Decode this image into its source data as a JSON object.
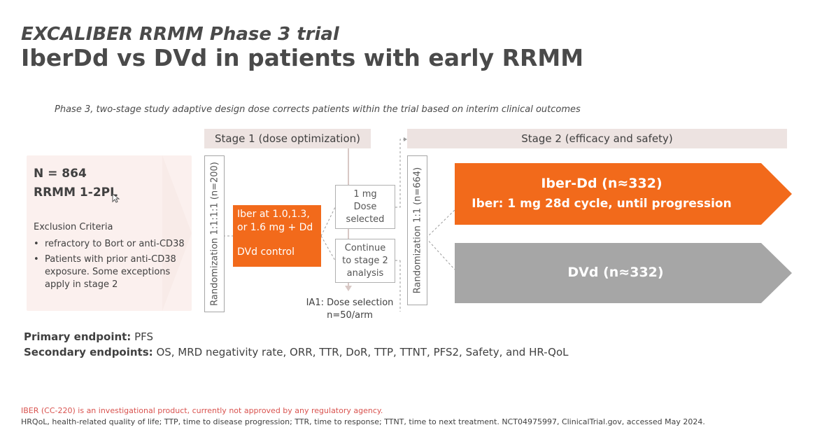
{
  "header": {
    "kicker": "EXCALIBER RRMM Phase 3 trial",
    "title": "IberDd vs DVd in patients with early RRMM"
  },
  "subtitle": "Phase 3, two-stage study adaptive design dose corrects patients within the trial based on interim clinical outcomes",
  "patients": {
    "n_label": "N = 864",
    "population": "RRMM 1-2PL",
    "exclusion_title": "Exclusion Criteria",
    "exclusion_items": [
      "refractory to Bort or anti-CD38",
      "Patients with prior anti-CD38 exposure. Some exceptions apply in stage 2"
    ]
  },
  "stage1": {
    "header": "Stage 1 (dose optimization)",
    "randomization": "Randomization 1:1:1:1 (n=200)",
    "arm_line1": "Iber at 1.0,1.3,",
    "arm_line2": "or 1.6 mg + Dd",
    "control": "DVd control",
    "dose_box": [
      "1 mg",
      "Dose",
      "selected"
    ],
    "continue_box": [
      "Continue",
      "to stage 2",
      "analysis"
    ],
    "ia1_title": "IA1: Dose selection",
    "ia1_sub": "n=50/arm"
  },
  "stage2": {
    "header": "Stage 2 (efficacy and safety)",
    "randomization": "Randomization 1:1 (n=664)",
    "arm1_title": "Iber-Dd (n≈332)",
    "arm1_desc": "Iber: 1 mg 28d cycle, until progression",
    "arm2_title": "DVd (n≈332)"
  },
  "endpoints": {
    "primary_label": "Primary endpoint:",
    "primary_value": " PFS",
    "secondary_label": "Secondary endpoints:",
    "secondary_value": " OS, MRD negativity rate, ORR, TTR, DoR, TTP, TTNT, PFS2, Safety, and HR-QoL"
  },
  "footer": {
    "disclaimer": "IBER (CC-220) is an investigational product, currently not approved by any regulatory agency.",
    "abbreviations": "HRQoL, health-related quality of life; TTP, time to disease progression; TTR, time to response; TTNT, time to next treatment. NCT04975997, ClinicalTrial.gov, accessed May 2024."
  },
  "colors": {
    "orange": "#f26a1b",
    "gray_arm": "#a6a6a6",
    "header_fill": "#ede3e1",
    "patient_fill": "#fbf0ee",
    "disclaimer_red": "#d9534f",
    "text": "#404040"
  },
  "icons": {
    "cursor": "mouse-pointer-icon"
  }
}
